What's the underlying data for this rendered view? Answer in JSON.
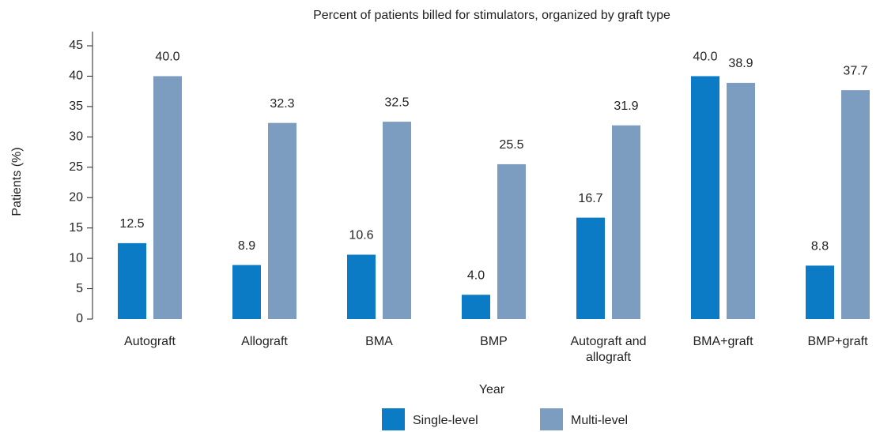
{
  "chart_data": {
    "type": "bar",
    "title": "Percent of patients billed for stimulators, organized by graft type",
    "x_label": "Year",
    "y_label": "Patients (%)",
    "categories": [
      "Autograft",
      "Allograft",
      "BMA",
      "BMP",
      "Autograft and allograft",
      "BMA+graft",
      "BMP+graft"
    ],
    "series": [
      {
        "name": "Single-level",
        "color": "#0a7bc4",
        "values": [
          12.5,
          8.9,
          10.6,
          4.0,
          16.7,
          40.0,
          8.8
        ],
        "value_labels": [
          "12.5",
          "8.9",
          "10.6",
          "4.0",
          "16.7",
          "40.0",
          "8.8"
        ]
      },
      {
        "name": "Multi-level",
        "color": "#7d9dc0",
        "values": [
          40.0,
          32.3,
          32.5,
          25.5,
          31.9,
          38.9,
          37.7
        ],
        "value_labels": [
          "40.0",
          "32.3",
          "32.5",
          "25.5",
          "31.9",
          "38.9",
          "37.7"
        ]
      }
    ],
    "ylim": [
      0,
      45
    ],
    "yticks": [
      0,
      5,
      10,
      15,
      20,
      25,
      30,
      35,
      40,
      45
    ],
    "grid": false,
    "legend": "bottom"
  }
}
